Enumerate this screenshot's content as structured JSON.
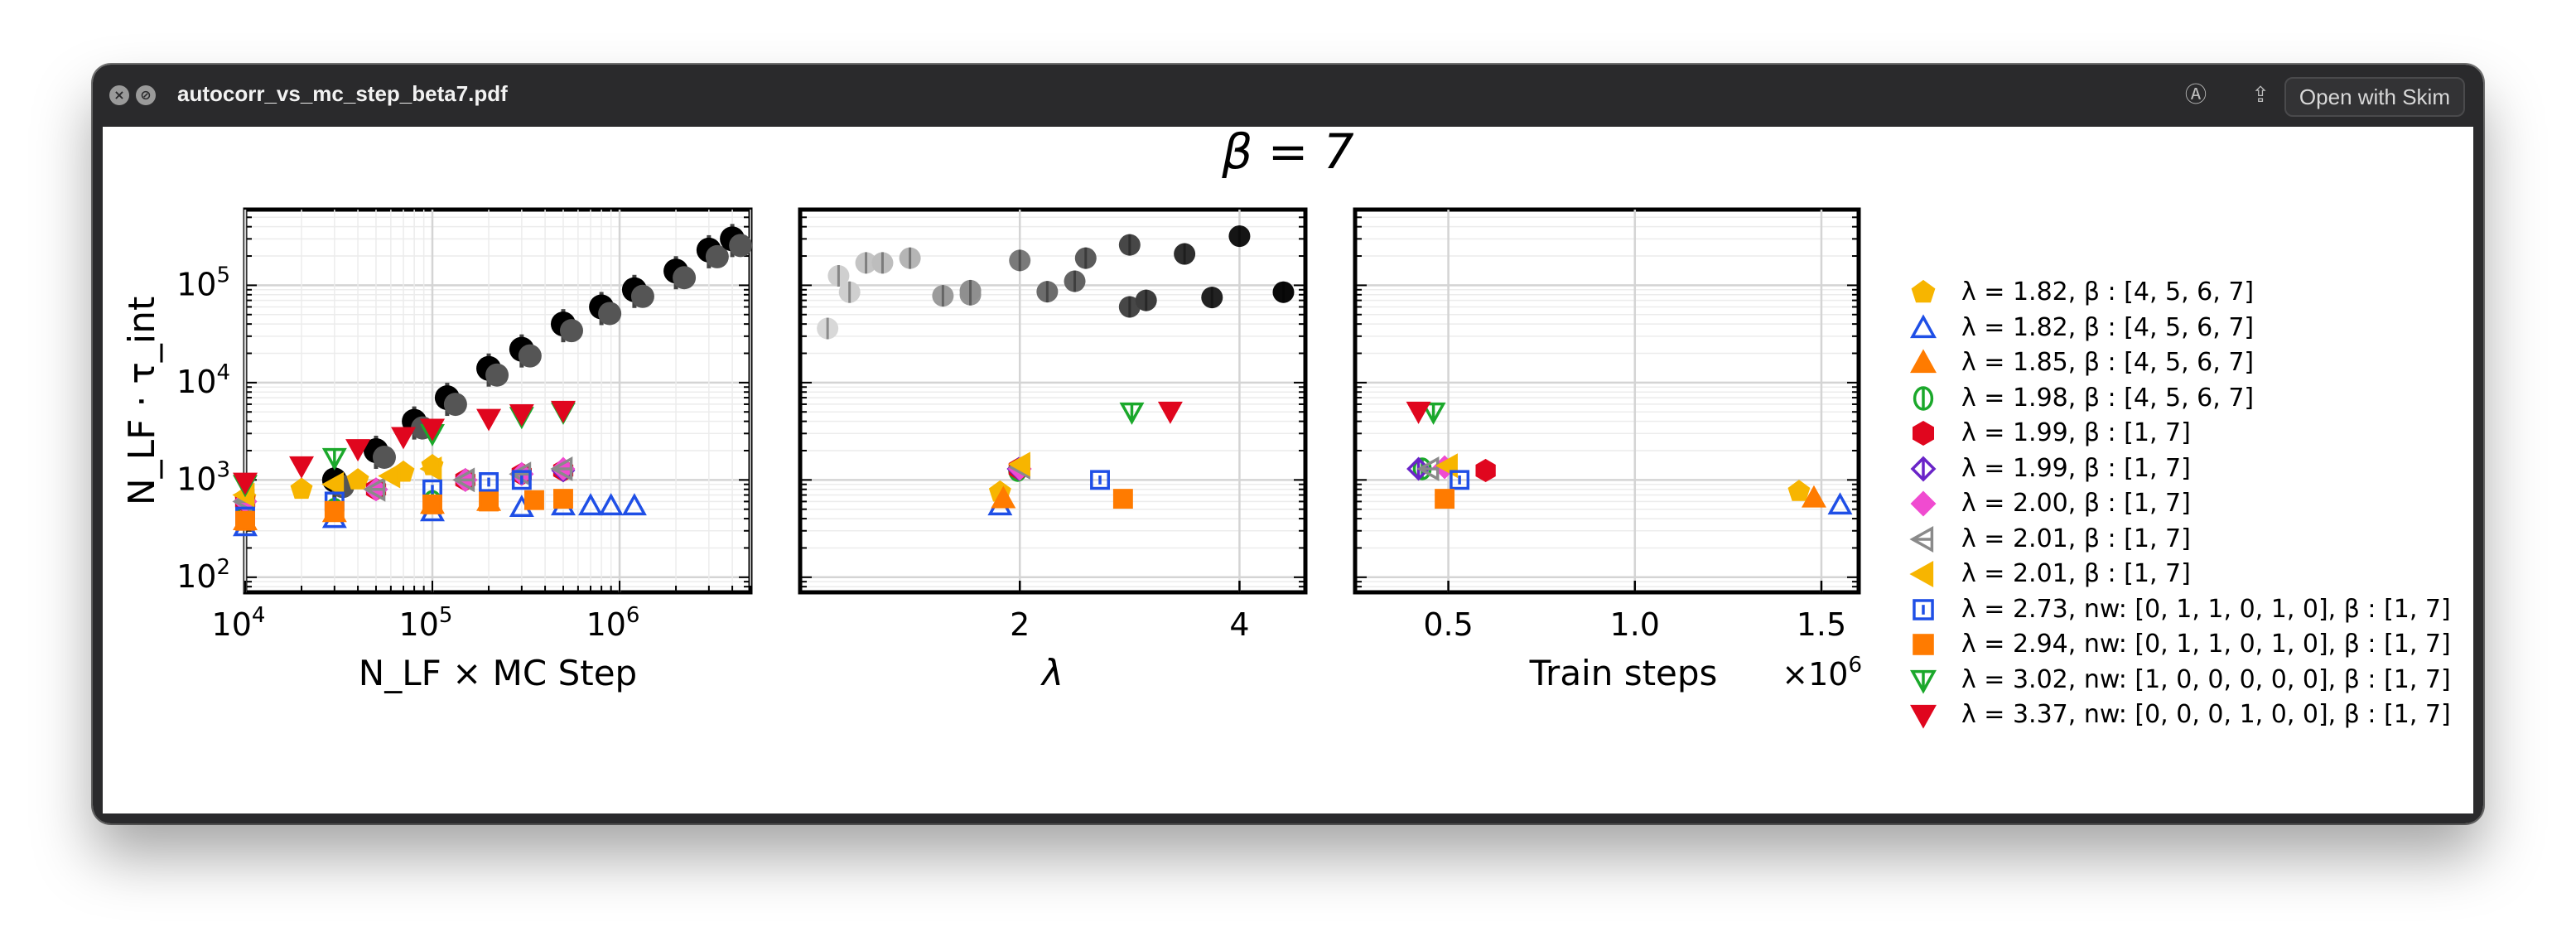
{
  "window": {
    "title": "autocorr_vs_mc_step_beta7.pdf",
    "open_button": "Open with Skim",
    "icons": [
      "close-icon",
      "stop-icon",
      "markup-icon",
      "share-icon"
    ]
  },
  "chart_data": [
    {
      "type": "scatter",
      "title": "β = 7",
      "xlabel": "N_LF × MC Step",
      "ylabel": "N_LF · τ_int",
      "xscale": "log",
      "yscale": "log",
      "xlim": [
        10000,
        5000000
      ],
      "ylim": [
        70,
        600000
      ],
      "xticks": [
        "10^4",
        "10^5",
        "10^6"
      ],
      "yticks": [
        "10^2",
        "10^3",
        "10^4",
        "10^5"
      ],
      "grid": true,
      "series": [
        {
          "name": "λ = 1.82, β : [4, 5, 6, 7]",
          "marker": "pentagon",
          "color": "#f7b500",
          "filled": true,
          "x": [
            10000,
            20000,
            40000,
            70000,
            100000
          ],
          "y": [
            650,
            800,
            1000,
            1200,
            1400
          ]
        },
        {
          "name": "λ = 1.82, β : [4, 5, 6, 7]",
          "marker": "triangle-up",
          "color": "#1f4fe6",
          "filled": false,
          "x": [
            10000,
            30000,
            100000,
            300000,
            500000,
            700000,
            900000,
            1200000
          ],
          "y": [
            330,
            400,
            470,
            520,
            540,
            540,
            540,
            540
          ]
        },
        {
          "name": "λ = 1.85, β : [4, 5, 6, 7]",
          "marker": "triangle-up",
          "color": "#ff7b00",
          "filled": true,
          "x": [
            10000,
            30000,
            100000,
            200000
          ],
          "y": [
            380,
            460,
            560,
            600
          ]
        },
        {
          "name": "λ = 1.98, β : [4, 5, 6, 7]",
          "marker": "circle-bar",
          "color": "#1ba82b",
          "filled": false,
          "x": [
            10000,
            30000,
            100000
          ],
          "y": [
            420,
            500,
            600
          ]
        },
        {
          "name": "λ = 1.99, β : [1, 7]",
          "marker": "hexagon",
          "color": "#e0061e",
          "filled": true,
          "x": [
            10000,
            50000,
            150000,
            300000,
            500000
          ],
          "y": [
            600,
            800,
            1000,
            1150,
            1250
          ]
        },
        {
          "name": "λ = 1.99, β : [1, 7]",
          "marker": "diamond-bar",
          "color": "#6a24c8",
          "filled": false,
          "x": [
            10000,
            50000,
            150000,
            300000,
            500000
          ],
          "y": [
            600,
            800,
            1000,
            1150,
            1250
          ]
        },
        {
          "name": "λ = 2.00, β : [1, 7]",
          "marker": "diamond",
          "color": "#f04bd0",
          "filled": true,
          "x": [
            10000,
            50000,
            150000,
            300000,
            500000
          ],
          "y": [
            600,
            800,
            1000,
            1150,
            1300
          ]
        },
        {
          "name": "λ = 2.01, β : [1, 7]",
          "marker": "triangle-left",
          "color": "#8a8a8a",
          "filled": false,
          "x": [
            10000,
            50000,
            150000,
            300000,
            500000
          ],
          "y": [
            600,
            800,
            1000,
            1150,
            1300
          ]
        },
        {
          "name": "λ = 2.01, β : [1, 7]",
          "marker": "triangle-left",
          "color": "#f7b500",
          "filled": true,
          "x": [
            10000,
            30000,
            60000,
            100000
          ],
          "y": [
            700,
            900,
            1100,
            1300
          ]
        },
        {
          "name": "λ = 2.73, nw: [0, 1, 1, 0, 1, 0], β : [1, 7]",
          "marker": "square-bar",
          "color": "#1f4fe6",
          "filled": false,
          "x": [
            10000,
            30000,
            100000,
            200000,
            300000
          ],
          "y": [
            420,
            600,
            800,
            950,
            1000
          ]
        },
        {
          "name": "λ = 2.94, nw: [0, 1, 1, 0, 1, 0], β : [1, 7]",
          "marker": "square",
          "color": "#ff7b00",
          "filled": true,
          "x": [
            10000,
            30000,
            100000,
            200000,
            350000,
            500000
          ],
          "y": [
            380,
            480,
            560,
            600,
            620,
            640
          ]
        },
        {
          "name": "λ = 3.02, nw: [1, 0, 0, 0, 0, 0], β : [1, 7]",
          "marker": "triangle-down-bar",
          "color": "#1ba82b",
          "filled": false,
          "x": [
            10000,
            30000,
            100000,
            300000,
            500000
          ],
          "y": [
            900,
            1700,
            3000,
            4500,
            5000
          ]
        },
        {
          "name": "λ = 3.37, nw: [0, 0, 0, 1, 0, 0], β : [1, 7]",
          "marker": "triangle-down",
          "color": "#e0061e",
          "filled": true,
          "x": [
            10000,
            20000,
            40000,
            70000,
            100000,
            200000,
            300000,
            500000
          ],
          "y": [
            950,
            1400,
            2100,
            2800,
            3400,
            4300,
            4800,
            5200
          ]
        },
        {
          "name": "",
          "marker": "circle",
          "color": "#000000",
          "filled": true,
          "x": [
            30000,
            50000,
            80000,
            120000,
            200000,
            300000,
            500000,
            800000,
            1200000,
            2000000,
            3000000,
            4000000
          ],
          "y": [
            1000,
            2000,
            4000,
            7000,
            14000,
            22000,
            40000,
            60000,
            90000,
            140000,
            230000,
            300000
          ]
        }
      ]
    },
    {
      "type": "scatter",
      "xlabel": "λ",
      "ylabel": "",
      "yscale": "log",
      "xlim": [
        0,
        4.6
      ],
      "ylim": [
        70,
        600000
      ],
      "xticks": [
        "2",
        "4"
      ],
      "grid": true,
      "points": [
        {
          "x": 0.25,
          "y": 36000,
          "marker": "circle",
          "color": "#d8d8d8"
        },
        {
          "x": 0.35,
          "y": 125000,
          "marker": "circle",
          "color": "#cfcfcf"
        },
        {
          "x": 0.45,
          "y": 85000,
          "marker": "circle",
          "color": "#cfcfcf"
        },
        {
          "x": 0.6,
          "y": 170000,
          "marker": "circle",
          "color": "#c4c4c4"
        },
        {
          "x": 0.75,
          "y": 170000,
          "marker": "circle",
          "color": "#bdbdbd"
        },
        {
          "x": 1.0,
          "y": 190000,
          "marker": "circle",
          "color": "#b5b5b5"
        },
        {
          "x": 1.3,
          "y": 78000,
          "marker": "circle",
          "color": "#9b9b9b"
        },
        {
          "x": 1.55,
          "y": 80000,
          "marker": "circle",
          "color": "#939393"
        },
        {
          "x": 1.55,
          "y": 88000,
          "marker": "circle",
          "color": "#8f8f8f"
        },
        {
          "x": 2.0,
          "y": 180000,
          "marker": "circle",
          "color": "#7a7a7a"
        },
        {
          "x": 2.25,
          "y": 86000,
          "marker": "circle",
          "color": "#6c6c6c"
        },
        {
          "x": 2.5,
          "y": 110000,
          "marker": "circle",
          "color": "#626262"
        },
        {
          "x": 2.6,
          "y": 190000,
          "marker": "circle",
          "color": "#5b5b5b"
        },
        {
          "x": 3.0,
          "y": 260000,
          "marker": "circle",
          "color": "#474747"
        },
        {
          "x": 3.0,
          "y": 60000,
          "marker": "circle",
          "color": "#474747"
        },
        {
          "x": 3.15,
          "y": 70000,
          "marker": "circle",
          "color": "#3d3d3d"
        },
        {
          "x": 3.5,
          "y": 210000,
          "marker": "circle",
          "color": "#2e2e2e"
        },
        {
          "x": 3.75,
          "y": 75000,
          "marker": "circle",
          "color": "#222222"
        },
        {
          "x": 4.0,
          "y": 320000,
          "marker": "circle",
          "color": "#151515"
        },
        {
          "x": 4.4,
          "y": 85000,
          "marker": "circle",
          "color": "#0a0a0a"
        },
        {
          "x": 1.82,
          "y": 750,
          "marker": "pentagon",
          "color": "#f7b500",
          "filled": true
        },
        {
          "x": 1.82,
          "y": 540,
          "marker": "triangle-up",
          "color": "#1f4fe6",
          "filled": false
        },
        {
          "x": 1.85,
          "y": 640,
          "marker": "triangle-up",
          "color": "#ff7b00",
          "filled": true
        },
        {
          "x": 1.98,
          "y": 1250,
          "marker": "circle-bar",
          "color": "#1ba82b",
          "filled": false
        },
        {
          "x": 1.99,
          "y": 1300,
          "marker": "hexagon",
          "color": "#e0061e",
          "filled": true
        },
        {
          "x": 1.99,
          "y": 1300,
          "marker": "diamond-bar",
          "color": "#6a24c8",
          "filled": false
        },
        {
          "x": 2.0,
          "y": 1300,
          "marker": "diamond",
          "color": "#f04bd0",
          "filled": true
        },
        {
          "x": 2.01,
          "y": 1350,
          "marker": "triangle-left",
          "color": "#8a8a8a",
          "filled": false
        },
        {
          "x": 2.01,
          "y": 1450,
          "marker": "triangle-left",
          "color": "#f7b500",
          "filled": true
        },
        {
          "x": 2.73,
          "y": 1000,
          "marker": "square-bar",
          "color": "#1f4fe6",
          "filled": false
        },
        {
          "x": 2.94,
          "y": 640,
          "marker": "square",
          "color": "#ff7b00",
          "filled": true
        },
        {
          "x": 3.02,
          "y": 5000,
          "marker": "triangle-down-bar",
          "color": "#1ba82b",
          "filled": false
        },
        {
          "x": 3.37,
          "y": 5100,
          "marker": "triangle-down",
          "color": "#e0061e",
          "filled": true
        }
      ]
    },
    {
      "type": "scatter",
      "xlabel": "Train steps",
      "ylabel": "",
      "yscale": "log",
      "xlim": [
        0.25,
        1.6
      ],
      "ylim": [
        70,
        600000
      ],
      "xticks": [
        "0.5",
        "1.0",
        "1.5"
      ],
      "x_offset_label": "×10^6",
      "grid": true,
      "points": [
        {
          "x": 1.44,
          "y": 760,
          "marker": "pentagon",
          "color": "#f7b500",
          "filled": true
        },
        {
          "x": 1.55,
          "y": 550,
          "marker": "triangle-up",
          "color": "#1f4fe6",
          "filled": false
        },
        {
          "x": 1.48,
          "y": 650,
          "marker": "triangle-up",
          "color": "#ff7b00",
          "filled": true
        },
        {
          "x": 0.43,
          "y": 1300,
          "marker": "circle-bar",
          "color": "#1ba82b",
          "filled": false
        },
        {
          "x": 0.6,
          "y": 1250,
          "marker": "hexagon",
          "color": "#e0061e",
          "filled": true
        },
        {
          "x": 0.42,
          "y": 1300,
          "marker": "diamond-bar",
          "color": "#6a24c8",
          "filled": false
        },
        {
          "x": 0.49,
          "y": 1350,
          "marker": "diamond",
          "color": "#f04bd0",
          "filled": true
        },
        {
          "x": 0.45,
          "y": 1300,
          "marker": "triangle-left",
          "color": "#8a8a8a",
          "filled": false
        },
        {
          "x": 0.5,
          "y": 1400,
          "marker": "triangle-left",
          "color": "#f7b500",
          "filled": true
        },
        {
          "x": 0.53,
          "y": 1000,
          "marker": "square-bar",
          "color": "#1f4fe6",
          "filled": false
        },
        {
          "x": 0.49,
          "y": 640,
          "marker": "square",
          "color": "#ff7b00",
          "filled": true
        },
        {
          "x": 0.46,
          "y": 5000,
          "marker": "triangle-down-bar",
          "color": "#1ba82b",
          "filled": false
        },
        {
          "x": 0.42,
          "y": 5100,
          "marker": "triangle-down",
          "color": "#e0061e",
          "filled": true
        }
      ]
    }
  ]
}
